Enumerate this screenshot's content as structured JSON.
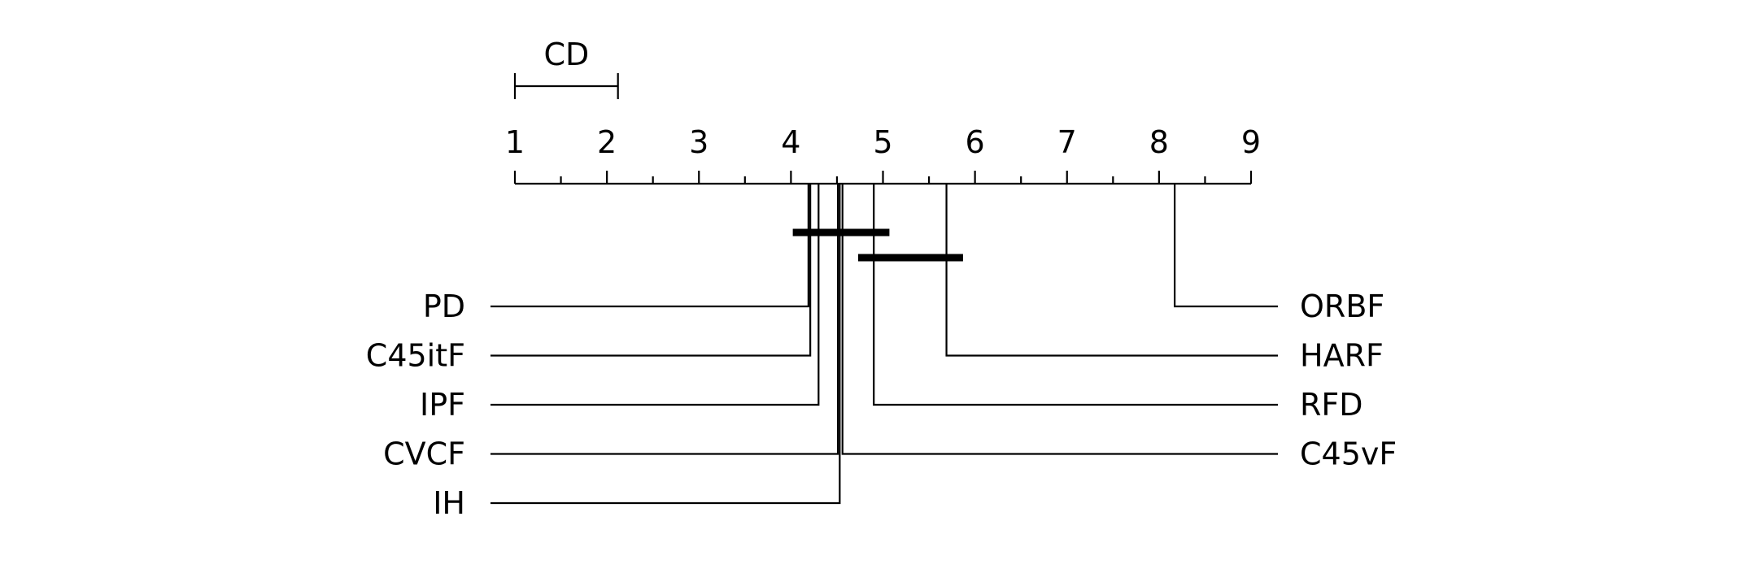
{
  "chart_data": {
    "type": "critical-difference",
    "title": "",
    "cd_label": "CD",
    "cd_value": 1.12,
    "axis": {
      "min": 1,
      "max": 9,
      "ticks": [
        "1",
        "2",
        "3",
        "4",
        "5",
        "6",
        "7",
        "8",
        "9"
      ]
    },
    "left_methods": [
      {
        "name": "PD",
        "rank": 4.19
      },
      {
        "name": "C45itF",
        "rank": 4.21
      },
      {
        "name": "IPF",
        "rank": 4.3
      },
      {
        "name": "CVCF",
        "rank": 4.51
      },
      {
        "name": "IH",
        "rank": 4.53
      }
    ],
    "right_methods": [
      {
        "name": "ORBF",
        "rank": 8.17
      },
      {
        "name": "HARF",
        "rank": 5.69
      },
      {
        "name": "RFD",
        "rank": 4.9
      },
      {
        "name": "C45vF",
        "rank": 4.56
      }
    ],
    "groups": [
      {
        "from": 4.02,
        "to": 5.07
      },
      {
        "from": 4.73,
        "to": 5.87
      }
    ]
  }
}
